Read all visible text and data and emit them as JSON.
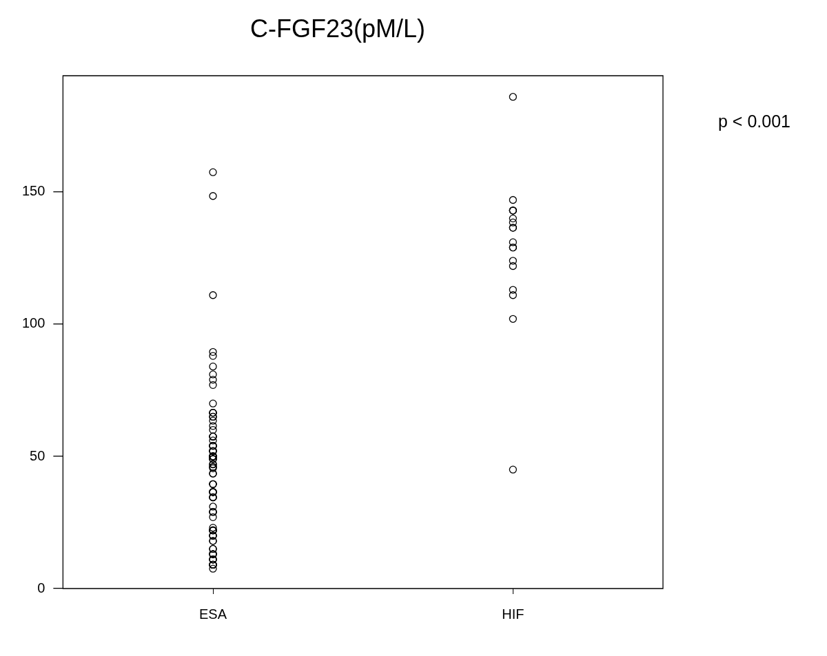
{
  "chart_data": {
    "type": "scatter",
    "title": "C-FGF23(pM/L)",
    "categories": [
      "ESA",
      "HIF"
    ],
    "series": [
      {
        "color": "#000000",
        "x": [
          "ESA",
          "ESA",
          "ESA",
          "ESA",
          "ESA",
          "ESA",
          "ESA",
          "ESA",
          "ESA",
          "ESA",
          "ESA",
          "ESA",
          "ESA",
          "ESA",
          "ESA",
          "ESA",
          "ESA",
          "ESA",
          "ESA",
          "ESA",
          "ESA",
          "ESA",
          "ESA",
          "ESA",
          "ESA",
          "ESA",
          "ESA",
          "ESA",
          "ESA",
          "ESA",
          "ESA",
          "ESA",
          "ESA",
          "ESA",
          "ESA",
          "ESA",
          "ESA",
          "ESA",
          "ESA",
          "ESA",
          "ESA",
          "ESA",
          "ESA",
          "ESA",
          "ESA",
          "ESA",
          "ESA",
          "ESA",
          "ESA",
          "ESA",
          "ESA",
          "ESA",
          "ESA",
          "ESA",
          "ESA",
          "ESA",
          "ESA",
          "ESA",
          "ESA",
          "ESA",
          "ESA",
          "ESA",
          "ESA",
          "ESA",
          "ESA",
          "ESA",
          "ESA",
          "ESA",
          "ESA",
          "ESA",
          "ESA",
          "ESA",
          "ESA",
          "ESA",
          "ESA",
          "ESA",
          "ESA",
          "ESA",
          "ESA",
          "ESA",
          "ESA",
          "ESA",
          "ESA",
          "ESA",
          "ESA",
          "ESA",
          "ESA",
          "ESA",
          "ESA"
        ],
        "values": [
          157.5,
          148.5,
          111,
          89.5,
          88,
          84,
          81,
          79,
          77,
          70,
          66.5,
          66.5,
          66.5,
          65,
          65,
          63.5,
          61.5,
          60,
          57.5,
          57.5,
          57.5,
          56,
          54,
          54,
          54,
          54,
          52,
          52,
          52,
          52,
          52,
          50,
          50,
          50,
          50,
          50,
          50,
          49,
          49,
          49,
          47,
          47,
          46,
          46,
          45.5,
          43.5,
          43.5,
          39.5,
          39.5,
          39.5,
          36.5,
          36.5,
          36.5,
          36.5,
          36.5,
          34.5,
          34.5,
          34.5,
          31,
          29,
          29,
          29,
          27,
          23,
          22,
          22,
          22,
          22,
          20,
          20,
          20,
          18,
          18,
          15,
          15,
          13,
          13,
          13,
          13,
          13,
          11,
          11,
          11,
          9,
          9,
          9,
          9,
          9,
          7.5
        ]
      },
      {
        "color": "#000000",
        "x": [
          "HIF",
          "HIF",
          "HIF",
          "HIF",
          "HIF",
          "HIF",
          "HIF",
          "HIF",
          "HIF",
          "HIF",
          "HIF",
          "HIF",
          "HIF",
          "HIF",
          "HIF",
          "HIF",
          "HIF",
          "HIF"
        ],
        "values": [
          186,
          147,
          143,
          143,
          143,
          140,
          138.5,
          136.5,
          136.5,
          131,
          129,
          129,
          124,
          122,
          113,
          111,
          102,
          45
        ]
      }
    ],
    "ylim": [
      0,
      194
    ],
    "yticks": [
      0,
      50,
      100,
      150
    ],
    "grid": false,
    "legend": false,
    "marker": "circle",
    "annotations": [
      "p < 0.001"
    ]
  }
}
